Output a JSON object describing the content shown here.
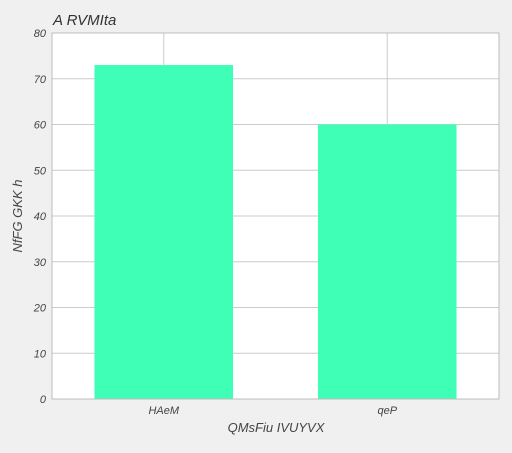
{
  "chart_data": {
    "type": "bar",
    "title": "A RVMIta",
    "xlabel": "QMsFiu IVUYVX",
    "ylabel": "NfFG  GKK h",
    "categories": [
      "HAeM",
      "qeP"
    ],
    "values": [
      73,
      60
    ],
    "ylim": [
      0,
      80
    ],
    "yticks": [
      "0",
      "10",
      "20",
      "30",
      "40",
      "50",
      "60",
      "70",
      "80"
    ],
    "grid": true,
    "bar_color": "#3fffb6",
    "background": "#f0f0f0",
    "plot_background": "#ffffff",
    "grid_color": "#cbcbcb"
  }
}
